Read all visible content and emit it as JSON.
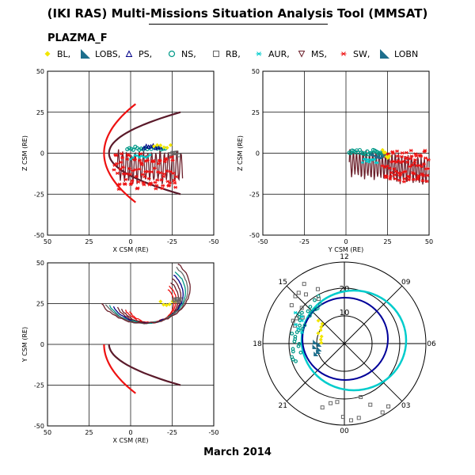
{
  "title": "(IKI RAS) Multi-Missions Situation Analysis Tool (MMSAT)",
  "instrument": "PLAZMA_F",
  "date": "March 2014",
  "legend": [
    {
      "label": "BL,",
      "symbol": "diamond",
      "color": "#f2e600",
      "filled": true
    },
    {
      "label": "LOBS,",
      "symbol": "wedge",
      "color": "#1d6e8c",
      "filled": true
    },
    {
      "label": "PS,",
      "symbol": "triangle",
      "color": "#000088",
      "filled": false
    },
    {
      "label": "NS,",
      "symbol": "circle",
      "color": "#009988",
      "filled": false
    },
    {
      "label": "RB,",
      "symbol": "square",
      "color": "#666666",
      "filled": false
    },
    {
      "label": "AUR,",
      "symbol": "asterisk",
      "color": "#00cccc",
      "filled": false
    },
    {
      "label": "MS,",
      "symbol": "tri-down",
      "color": "#6b1f2a",
      "filled": false
    },
    {
      "label": "SW,",
      "symbol": "asterisk",
      "color": "#ee1111",
      "filled": false
    },
    {
      "label": "LOBN",
      "symbol": "wedge",
      "color": "#1d6e8c",
      "filled": true
    }
  ],
  "chart_data": [
    {
      "type": "scatter",
      "name": "XZ",
      "xlabel": "X CSM (RE)",
      "ylabel": "Z CSM (RE)",
      "xlim": [
        50,
        -50
      ],
      "ylim": [
        -50,
        50
      ],
      "xticks": [
        50,
        25,
        0,
        -25,
        -50
      ],
      "yticks": [
        50,
        25,
        0,
        -25,
        -50
      ],
      "grid": true,
      "magnetopause": {
        "nose": 13,
        "flank_x": -30,
        "flank_half_width": 25
      },
      "bow_shock": {
        "nose": 16,
        "flank_x": -3,
        "flank_half_width": 30
      },
      "orbit": {
        "x_range": [
          12,
          -30
        ],
        "z_range": [
          -20,
          8
        ]
      }
    },
    {
      "type": "scatter",
      "name": "YZ",
      "xlabel": "Y CSM (RE)",
      "ylabel": "Z CSM (RE)",
      "xlim": [
        -50,
        50
      ],
      "ylim": [
        -50,
        50
      ],
      "xticks": [
        -50,
        -25,
        0,
        25,
        50
      ],
      "yticks": [
        50,
        25,
        0,
        -25,
        -50
      ],
      "grid": true,
      "orbit": {
        "y_range": [
          0,
          50
        ],
        "z_range": [
          -18,
          8
        ]
      }
    },
    {
      "type": "scatter",
      "name": "XY",
      "xlabel": "X CSM (RE)",
      "ylabel": "Y CSM (RE)",
      "xlim": [
        50,
        -50
      ],
      "ylim": [
        -50,
        50
      ],
      "xticks": [
        50,
        25,
        0,
        -25,
        -50
      ],
      "yticks": [
        -50,
        -25,
        0,
        25,
        50
      ],
      "grid": true,
      "orbit": {
        "x_range": [
          5,
          -30
        ],
        "y_range": [
          0,
          50
        ]
      }
    },
    {
      "type": "scatter",
      "name": "Polar MLT",
      "hour_labels": [
        "12",
        "09",
        "06",
        "03",
        "00",
        "21",
        "18",
        "15"
      ],
      "ring_labels": [
        "20",
        "10"
      ],
      "polar_rings": [
        20,
        10
      ]
    }
  ]
}
